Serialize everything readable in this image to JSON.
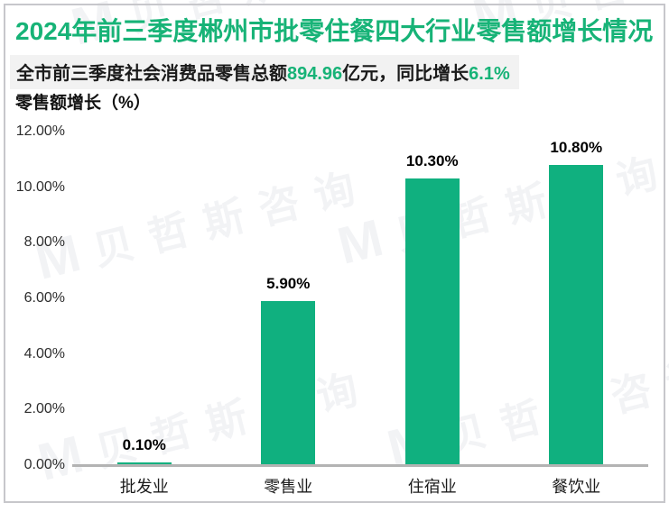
{
  "header": {
    "title": "2024年前三季度郴州市批零住餐四大行业零售额增长情况",
    "subtitle": {
      "prefix": "全市前三季度社会消费品零售总额",
      "total_value": "894.96",
      "middle": "亿元，同比增长",
      "growth_value": "6.1%"
    }
  },
  "watermark": {
    "logo": "M",
    "text": "贝哲斯咨询"
  },
  "chart_data": {
    "type": "bar",
    "title": "零售额增长（%）",
    "categories": [
      "批发业",
      "零售业",
      "住宿业",
      "餐饮业"
    ],
    "values": [
      0.1,
      5.9,
      10.3,
      10.8
    ],
    "value_labels": [
      "0.10%",
      "5.90%",
      "10.30%",
      "10.80%"
    ],
    "ylabel": "零售额增长（%）",
    "ylim": [
      0,
      12
    ],
    "y_ticks": [
      {
        "value": 12,
        "label": "12.00%"
      },
      {
        "value": 10,
        "label": "10.00%"
      },
      {
        "value": 8,
        "label": "8.00%"
      },
      {
        "value": 6,
        "label": "6.00%"
      },
      {
        "value": 4,
        "label": "4.00%"
      },
      {
        "value": 2,
        "label": "2.00%"
      },
      {
        "value": 0,
        "label": "0.00%"
      }
    ],
    "grid": false,
    "legend": false
  },
  "colors": {
    "title_green": "#17b377",
    "highlight_green": "#17b377",
    "bar_green": "#10b07f",
    "subtitle_bg": "#f2f2f2",
    "axis_line": "#b3b3b3"
  }
}
